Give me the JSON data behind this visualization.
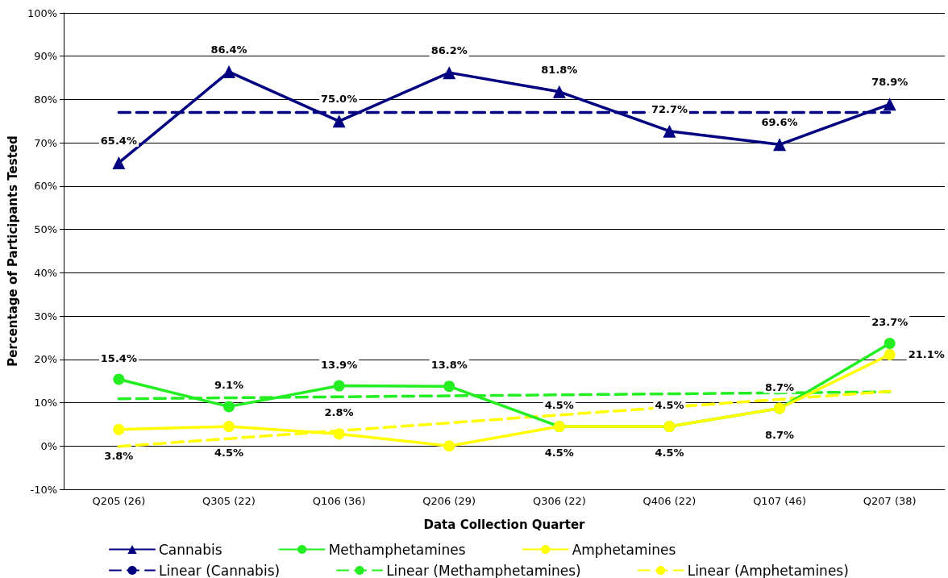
{
  "chart_data": {
    "type": "line",
    "xlabel": "Data Collection Quarter",
    "ylabel": "Percentage of Participants Tested",
    "categories": [
      "Q205 (26)",
      "Q305 (22)",
      "Q106 (36)",
      "Q206 (29)",
      "Q306 (22)",
      "Q406 (22)",
      "Q107 (46)",
      "Q207 (38)"
    ],
    "series": [
      {
        "name": "Cannabis",
        "color": "#000080",
        "marker": "triangle",
        "line_style": "solid",
        "values": [
          65.4,
          86.4,
          75.0,
          86.2,
          81.8,
          72.7,
          69.6,
          78.9
        ],
        "value_labels": [
          "65.4%",
          "86.4%",
          "75.0%",
          "86.2%",
          "81.8%",
          "72.7%",
          "69.6%",
          "78.9%"
        ]
      },
      {
        "name": "Methamphetamines",
        "color": "#22ee22",
        "marker": "circle",
        "line_style": "solid",
        "values": [
          15.4,
          9.1,
          13.9,
          13.8,
          4.5,
          4.5,
          8.7,
          23.7
        ],
        "value_labels": [
          "15.4%",
          "9.1%",
          "13.9%",
          "13.8%",
          "4.5%",
          "4.5%",
          "8.7%",
          "23.7%"
        ]
      },
      {
        "name": "Amphetamines",
        "color": "#ffff00",
        "marker": "circle",
        "line_style": "solid",
        "values": [
          3.8,
          4.5,
          2.8,
          0,
          4.5,
          4.5,
          8.7,
          21.1
        ],
        "value_labels": [
          "3.8%",
          "4.5%",
          "2.8%",
          null,
          "4.5%",
          "4.5%",
          "8.7%",
          "21.1%"
        ]
      },
      {
        "name": "Linear (Cannabis)",
        "color": "#000080",
        "marker": "none",
        "line_style": "dashed",
        "x": [
          "Q205 (26)",
          "Q207 (38)"
        ],
        "values": [
          77.0,
          77.0
        ]
      },
      {
        "name": "Linear (Methamphetamines)",
        "color": "#22ee22",
        "marker": "none",
        "line_style": "dashed",
        "x": [
          "Q205 (26)",
          "Q207 (38)"
        ],
        "values": [
          10.9,
          12.5
        ]
      },
      {
        "name": "Linear (Amphetamines)",
        "color": "#ffff00",
        "marker": "none",
        "line_style": "dashed",
        "x": [
          "Q205 (26)",
          "Q207 (38)"
        ],
        "values": [
          -0.1,
          12.6
        ]
      }
    ],
    "ylim": [
      -10,
      100
    ],
    "yticks": [
      {
        "value": -10,
        "label": "-10%"
      },
      {
        "value": 0,
        "label": "0%"
      },
      {
        "value": 10,
        "label": "10%"
      },
      {
        "value": 20,
        "label": "20%"
      },
      {
        "value": 30,
        "label": "30%"
      },
      {
        "value": 40,
        "label": "40%"
      },
      {
        "value": 50,
        "label": "50%"
      },
      {
        "value": 60,
        "label": "60%"
      },
      {
        "value": 70,
        "label": "70%"
      },
      {
        "value": 80,
        "label": "80%"
      },
      {
        "value": 90,
        "label": "90%"
      },
      {
        "value": 100,
        "label": "100%"
      }
    ],
    "grid": "y",
    "legend": "bottom"
  }
}
